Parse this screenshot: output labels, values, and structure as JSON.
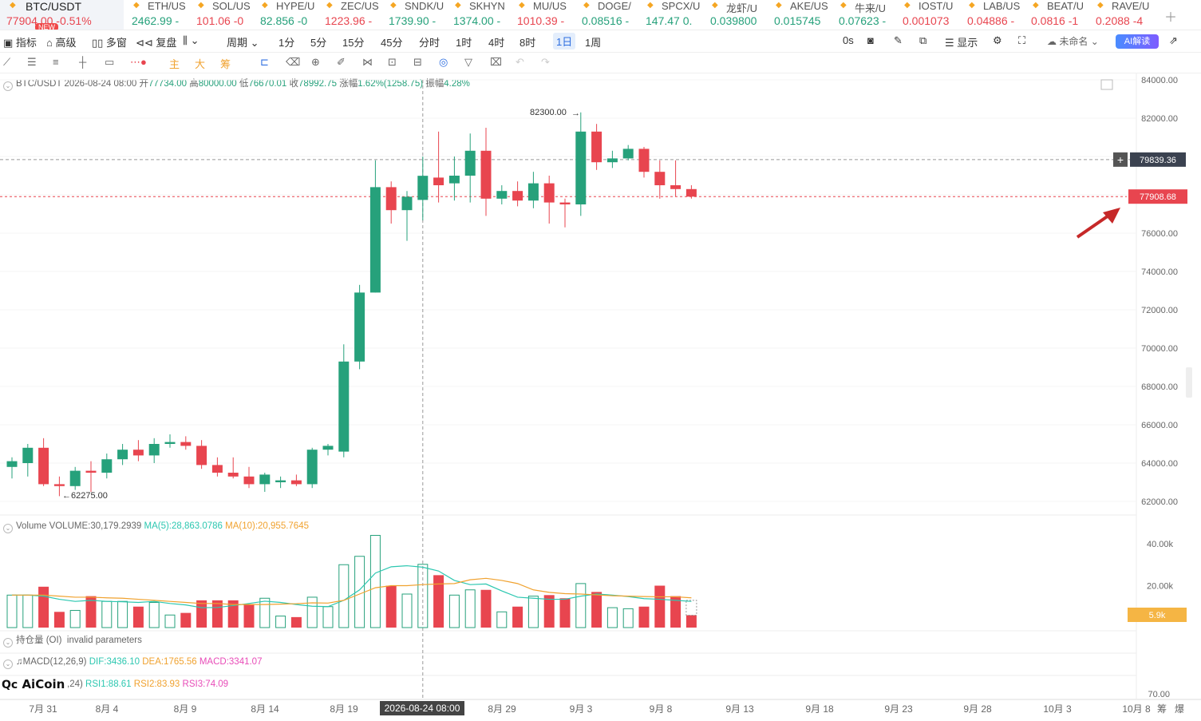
{
  "ticker": [
    {
      "name": "BTC/USDT",
      "price": "77904.00",
      "change": "-0.51%",
      "dir": "dn",
      "badge": "NEW"
    },
    {
      "name": "ETH/US",
      "price": "2462.99",
      "change": "-",
      "dir": "up"
    },
    {
      "name": "SOL/US",
      "price": "101.06",
      "change": "-0",
      "dir": "dn"
    },
    {
      "name": "HYPE/U",
      "price": "82.856",
      "change": "-0",
      "dir": "up"
    },
    {
      "name": "ZEC/US",
      "price": "1223.96",
      "change": "-",
      "dir": "dn"
    },
    {
      "name": "SNDK/U",
      "price": "1739.90",
      "change": "-",
      "dir": "up"
    },
    {
      "name": "SKHYN",
      "price": "1374.00",
      "change": "-",
      "dir": "up"
    },
    {
      "name": "MU/US",
      "price": "1010.39",
      "change": "-",
      "dir": "dn"
    },
    {
      "name": "DOGE/",
      "price": "0.08516",
      "change": "-",
      "dir": "up"
    },
    {
      "name": "SPCX/U",
      "price": "147.47",
      "change": "0.",
      "dir": "up"
    },
    {
      "name": "龙虾/U",
      "price": "0.039800",
      "change": "",
      "dir": "up"
    },
    {
      "name": "AKE/US",
      "price": "0.015745",
      "change": "",
      "dir": "up"
    },
    {
      "name": "牛来/U",
      "price": "0.07623",
      "change": "-",
      "dir": "up"
    },
    {
      "name": "IOST/U",
      "price": "0.001073",
      "change": "",
      "dir": "dn"
    },
    {
      "name": "LAB/US",
      "price": "0.04886",
      "change": "-",
      "dir": "dn"
    },
    {
      "name": "BEAT/U",
      "price": "0.0816",
      "change": "-1",
      "dir": "dn"
    },
    {
      "name": "RAVE/U",
      "price": "0.2088",
      "change": "-4",
      "dir": "dn"
    }
  ],
  "toolbar1": {
    "indicators": "指标",
    "advanced": "高级",
    "multi": "多窗",
    "replay": "复盘",
    "period": "周期",
    "periods": [
      "1分",
      "5分",
      "15分",
      "45分",
      "分时",
      "1时",
      "4时",
      "8时",
      "1日",
      "1周"
    ],
    "active_period": "1日",
    "countdown": "0s",
    "display": "显示",
    "unnamed": "未命名",
    "ai": "AI解读"
  },
  "toolbar2_icons": [
    "line-tool-icon",
    "horizontal-lines-icon",
    "parallel-lines-icon",
    "cross-line-icon",
    "rectangle-icon",
    "dot-line-icon",
    "main-label",
    "big-label",
    "chip-label",
    "bookmark-icon",
    "eraser-icon",
    "magnet-icon",
    "pen-icon",
    "link-icon",
    "lock-icon",
    "screenshot-icon",
    "eye-icon",
    "filter-icon",
    "trash-icon",
    "undo-icon",
    "redo-icon"
  ],
  "toolbar2_labels": {
    "main": "主",
    "big": "大",
    "chip": "筹"
  },
  "ohlc": {
    "symbol": "BTC/USDT",
    "time": "2026-08-24 08:00",
    "open_label": "开",
    "open": "77734.00",
    "high_label": "高",
    "high": "80000.00",
    "low_label": "低",
    "low": "76670.01",
    "close_label": "收",
    "close": "78992.75",
    "chg_label": "涨幅",
    "chg": "1.62%(1258.75)",
    "amp_label": "振幅",
    "amp": "4.28%"
  },
  "volume_legend": {
    "name": "Volume",
    "volume": "VOLUME:30,179.2939",
    "ma5": "MA(5):28,863.0786",
    "ma10": "MA(10):20,955.7645"
  },
  "oi_legend": {
    "name": "持仓量 (OI)",
    "msg": "invalid parameters"
  },
  "macd_legend": {
    "name": "MACD(12,26,9)",
    "dif": "DIF:3436.10",
    "dea": "DEA:1765.56",
    "macd": "MACD:3341.07"
  },
  "rsi_legend": {
    "name": ",24)",
    "rsi1": "RSI1:88.61",
    "rsi2": "RSI2:83.93",
    "rsi3": "RSI3:74.09"
  },
  "logo": "AiCoin",
  "chart_data": {
    "type": "candlestick",
    "price_ticks": [
      "84000.00",
      "82000.00",
      "80000.00",
      "78000.00",
      "76000.00",
      "74000.00",
      "72000.00",
      "70000.00",
      "68000.00",
      "66000.00",
      "64000.00",
      "62000.00"
    ],
    "price_range": [
      61200,
      84200
    ],
    "volume_ticks": [
      "40.00k",
      "20.00k"
    ],
    "volume_range": [
      0,
      46000
    ],
    "rsi_tick": "70.00",
    "x_ticks": [
      "7月 31",
      "8月 4",
      "8月 9",
      "8月 14",
      "8月 19",
      "2026-08-24 08:00",
      "8月 29",
      "9月 3",
      "9月 8",
      "9月 13",
      "9月 18",
      "9月 23",
      "9月 28",
      "10月 3",
      "10月 8"
    ],
    "crosshair_label": "2026-08-24 08:00",
    "crosshair_price": "79839.36",
    "last_price": "77908.68",
    "volume_tag": "5.9k",
    "high_marker": "82300.00",
    "low_marker": "62275.00",
    "footer_right": [
      "筹",
      "爆"
    ],
    "candles": [
      {
        "o": 63800,
        "h": 64300,
        "l": 63200,
        "c": 64100,
        "v": 15500
      },
      {
        "o": 64000,
        "h": 65000,
        "l": 63300,
        "c": 64800,
        "v": 15500
      },
      {
        "o": 64800,
        "h": 65300,
        "l": 62800,
        "c": 62900,
        "v": 19500
      },
      {
        "o": 62900,
        "h": 63300,
        "l": 62275,
        "c": 62800,
        "v": 7500
      },
      {
        "o": 62800,
        "h": 63800,
        "l": 62600,
        "c": 63600,
        "v": 8200
      },
      {
        "o": 63600,
        "h": 64100,
        "l": 62500,
        "c": 63500,
        "v": 15000
      },
      {
        "o": 63500,
        "h": 64500,
        "l": 63200,
        "c": 64200,
        "v": 12500
      },
      {
        "o": 64200,
        "h": 65000,
        "l": 63900,
        "c": 64700,
        "v": 12500
      },
      {
        "o": 64700,
        "h": 65200,
        "l": 64100,
        "c": 64400,
        "v": 10000
      },
      {
        "o": 64400,
        "h": 65300,
        "l": 64000,
        "c": 65000,
        "v": 12000
      },
      {
        "o": 65000,
        "h": 65500,
        "l": 64800,
        "c": 65100,
        "v": 6000
      },
      {
        "o": 65100,
        "h": 65400,
        "l": 64700,
        "c": 64900,
        "v": 7000
      },
      {
        "o": 64900,
        "h": 65200,
        "l": 63700,
        "c": 63900,
        "v": 13000
      },
      {
        "o": 63900,
        "h": 64300,
        "l": 63300,
        "c": 63500,
        "v": 13000
      },
      {
        "o": 63500,
        "h": 64300,
        "l": 63200,
        "c": 63300,
        "v": 13000
      },
      {
        "o": 63300,
        "h": 63800,
        "l": 62700,
        "c": 62900,
        "v": 11000
      },
      {
        "o": 62900,
        "h": 63500,
        "l": 62500,
        "c": 63400,
        "v": 14000
      },
      {
        "o": 63000,
        "h": 63300,
        "l": 62700,
        "c": 63100,
        "v": 5500
      },
      {
        "o": 63100,
        "h": 63400,
        "l": 62800,
        "c": 62900,
        "v": 5000
      },
      {
        "o": 62900,
        "h": 64800,
        "l": 62700,
        "c": 64700,
        "v": 14500
      },
      {
        "o": 64700,
        "h": 65000,
        "l": 64400,
        "c": 64900,
        "v": 10000
      },
      {
        "o": 64600,
        "h": 70200,
        "l": 64300,
        "c": 69300,
        "v": 30000
      },
      {
        "o": 69300,
        "h": 73300,
        "l": 68900,
        "c": 72900,
        "v": 34000
      },
      {
        "o": 72900,
        "h": 79800,
        "l": 72900,
        "c": 78400,
        "v": 44000
      },
      {
        "o": 78400,
        "h": 78700,
        "l": 76500,
        "c": 77200,
        "v": 20000
      },
      {
        "o": 77200,
        "h": 78200,
        "l": 75600,
        "c": 77900,
        "v": 16000
      },
      {
        "o": 77734,
        "h": 80000,
        "l": 76670,
        "c": 78993,
        "v": 30179
      },
      {
        "o": 78900,
        "h": 81300,
        "l": 77600,
        "c": 78500,
        "v": 25000
      },
      {
        "o": 78600,
        "h": 80000,
        "l": 77700,
        "c": 79000,
        "v": 15500
      },
      {
        "o": 79000,
        "h": 81200,
        "l": 77600,
        "c": 80300,
        "v": 18000
      },
      {
        "o": 80300,
        "h": 81500,
        "l": 76900,
        "c": 77800,
        "v": 18000
      },
      {
        "o": 77800,
        "h": 78500,
        "l": 77500,
        "c": 78200,
        "v": 7500
      },
      {
        "o": 78200,
        "h": 78700,
        "l": 77400,
        "c": 77700,
        "v": 10000
      },
      {
        "o": 77700,
        "h": 79200,
        "l": 77300,
        "c": 78600,
        "v": 15000
      },
      {
        "o": 78600,
        "h": 79000,
        "l": 76500,
        "c": 77600,
        "v": 15500
      },
      {
        "o": 77600,
        "h": 77800,
        "l": 76300,
        "c": 77500,
        "v": 14000
      },
      {
        "o": 77500,
        "h": 82300,
        "l": 76900,
        "c": 81300,
        "v": 21000
      },
      {
        "o": 81300,
        "h": 81700,
        "l": 79300,
        "c": 79700,
        "v": 17000
      },
      {
        "o": 79700,
        "h": 80300,
        "l": 79400,
        "c": 79900,
        "v": 9500
      },
      {
        "o": 79900,
        "h": 80600,
        "l": 79800,
        "c": 80400,
        "v": 9000
      },
      {
        "o": 80400,
        "h": 80500,
        "l": 78900,
        "c": 79200,
        "v": 10000
      },
      {
        "o": 79200,
        "h": 79800,
        "l": 77800,
        "c": 78500,
        "v": 20000
      },
      {
        "o": 78500,
        "h": 79800,
        "l": 77900,
        "c": 78300,
        "v": 15000
      },
      {
        "o": 78300,
        "h": 78500,
        "l": 77800,
        "c": 77905,
        "v": 5900
      }
    ],
    "ma5": [
      15500,
      15500,
      15000,
      13500,
      12500,
      13000,
      12500,
      12300,
      12000,
      12500,
      11500,
      10800,
      9500,
      9600,
      10500,
      11500,
      12600,
      12000,
      11000,
      10200,
      10000,
      13000,
      18000,
      26000,
      29000,
      29500,
      28800,
      27000,
      22500,
      20500,
      20800,
      17500,
      14500,
      14000,
      13500,
      13500,
      15000,
      16000,
      15500,
      14800,
      13800,
      13500,
      13000,
      12500
    ],
    "ma10": [
      15500,
      15500,
      15500,
      15000,
      14500,
      14500,
      14200,
      14000,
      13500,
      13000,
      12500,
      12000,
      11500,
      11500,
      11000,
      11000,
      11000,
      11200,
      11400,
      11800,
      11700,
      13000,
      16000,
      19000,
      20000,
      20000,
      20500,
      20800,
      21000,
      22800,
      23500,
      22500,
      21000,
      18000,
      16800,
      16200,
      16000,
      15600,
      15200,
      15000,
      14800,
      14700,
      14700,
      14200
    ]
  }
}
